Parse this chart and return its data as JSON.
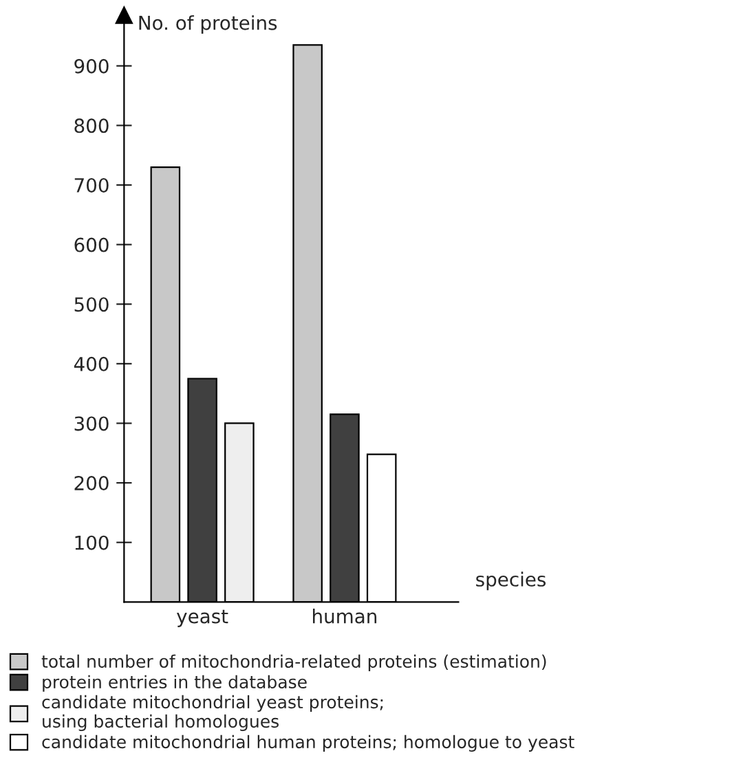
{
  "chart_data": {
    "type": "bar",
    "xlabel": "species",
    "ylabel": "No. of proteins",
    "categories": [
      "yeast",
      "human"
    ],
    "series": [
      {
        "name": "total number of mitochondria-related proteins (estimation)",
        "color": "#c8c8c8",
        "values": [
          730,
          935
        ]
      },
      {
        "name": "protein entries in the database",
        "color": "#404040",
        "values": [
          375,
          315
        ]
      },
      {
        "name": "candidate mitochondrial yeast proteins;\nusing bacterial homologues",
        "color": "#eeeeee",
        "values": [
          300,
          null
        ]
      },
      {
        "name": "candidate mitochondrial human proteins; homologue to yeast",
        "color": "#ffffff",
        "values": [
          null,
          248
        ]
      }
    ],
    "ylim": [
      0,
      985
    ],
    "yticks": [
      100,
      200,
      300,
      400,
      500,
      600,
      700,
      800,
      900
    ],
    "grid": false,
    "legend": "bottom"
  }
}
